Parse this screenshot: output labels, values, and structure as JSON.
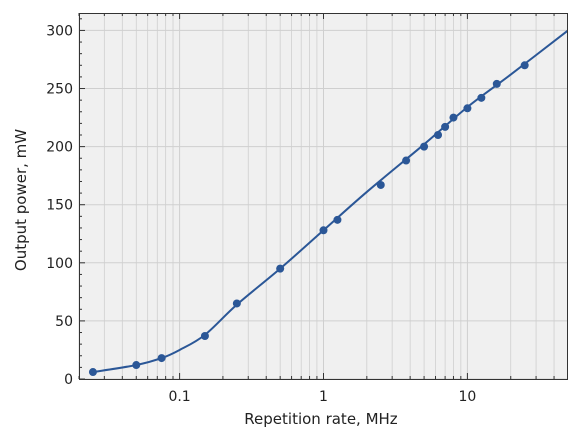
{
  "chart_data": {
    "type": "line",
    "xlabel": "Repetition rate, MHz",
    "ylabel": "Output power, mW",
    "xscale": "log",
    "xlim": [
      0.02,
      50
    ],
    "ylim": [
      0,
      315
    ],
    "grid": true,
    "legend": "none",
    "x_tick_labels": [
      "0.1",
      "1",
      "10"
    ],
    "x_tick_values": [
      0.1,
      1,
      10
    ],
    "y_tick_values": [
      0,
      50,
      100,
      150,
      200,
      250,
      300
    ],
    "series": [
      {
        "x": [
          0.025,
          0.05,
          0.075,
          0.15,
          0.25,
          0.5,
          1.0,
          1.25,
          2.5,
          3.75,
          5.0,
          6.25,
          7.0,
          8.0,
          10.0,
          12.5,
          16.0,
          25.0
        ],
        "y": [
          6,
          12,
          18,
          37,
          65,
          95,
          128,
          137,
          167,
          188,
          200,
          210,
          217,
          225,
          233,
          242,
          254,
          270
        ]
      }
    ],
    "fit_curve": {
      "x": [
        0.025,
        0.05,
        0.075,
        0.1,
        0.15,
        0.25,
        0.5,
        1.0,
        2.0,
        5.0,
        10.0,
        20.0,
        50.0
      ],
      "y": [
        6,
        12,
        18,
        25,
        38,
        64,
        95,
        128,
        161,
        202,
        234,
        262,
        300
      ]
    },
    "colors": {
      "line": "#2b5797",
      "plot_bg": "#f0f0f0",
      "grid": "#cfcfcf"
    }
  }
}
